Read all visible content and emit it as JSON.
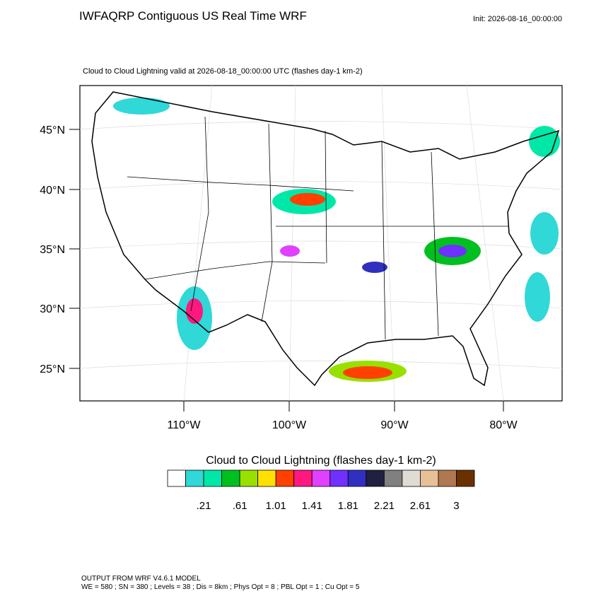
{
  "header": {
    "title": "IWFAQRP Contiguous US Real Time WRF",
    "init": "Init: 2026-08-16_00:00:00"
  },
  "map": {
    "subtitle": "Cloud to Cloud Lightning valid at 2026-08-18_00:00:00 UTC   (flashes day-1 km-2)",
    "lat_labels": [
      "45°N",
      "40°N",
      "35°N",
      "30°N",
      "25°N"
    ],
    "lon_labels": [
      "110°W",
      "100°W",
      "90°W",
      "80°W"
    ]
  },
  "colorbar": {
    "title": "Cloud to Cloud Lightning  (flashes day-1 km-2)",
    "colors": [
      "#ffffff",
      "#30d8d8",
      "#00e8a8",
      "#00c020",
      "#98e000",
      "#ffe000",
      "#ff4000",
      "#ff1880",
      "#e040ff",
      "#7030ff",
      "#3030c0",
      "#202040",
      "#808080",
      "#e0dcd4",
      "#e8c098",
      "#b07850",
      "#6a3000"
    ],
    "labels": [
      ".21",
      ".61",
      "1.01",
      "1.41",
      "1.81",
      "2.21",
      "2.61",
      "3"
    ]
  },
  "footer": {
    "line1": "OUTPUT FROM WRF V4.6.1 MODEL",
    "line2": "WE = 580 ; SN = 380 ; Levels = 38 ; Dis = 8km ; Phys Opt = 8 ; PBL Opt = 1 ; Cu Opt = 5"
  }
}
